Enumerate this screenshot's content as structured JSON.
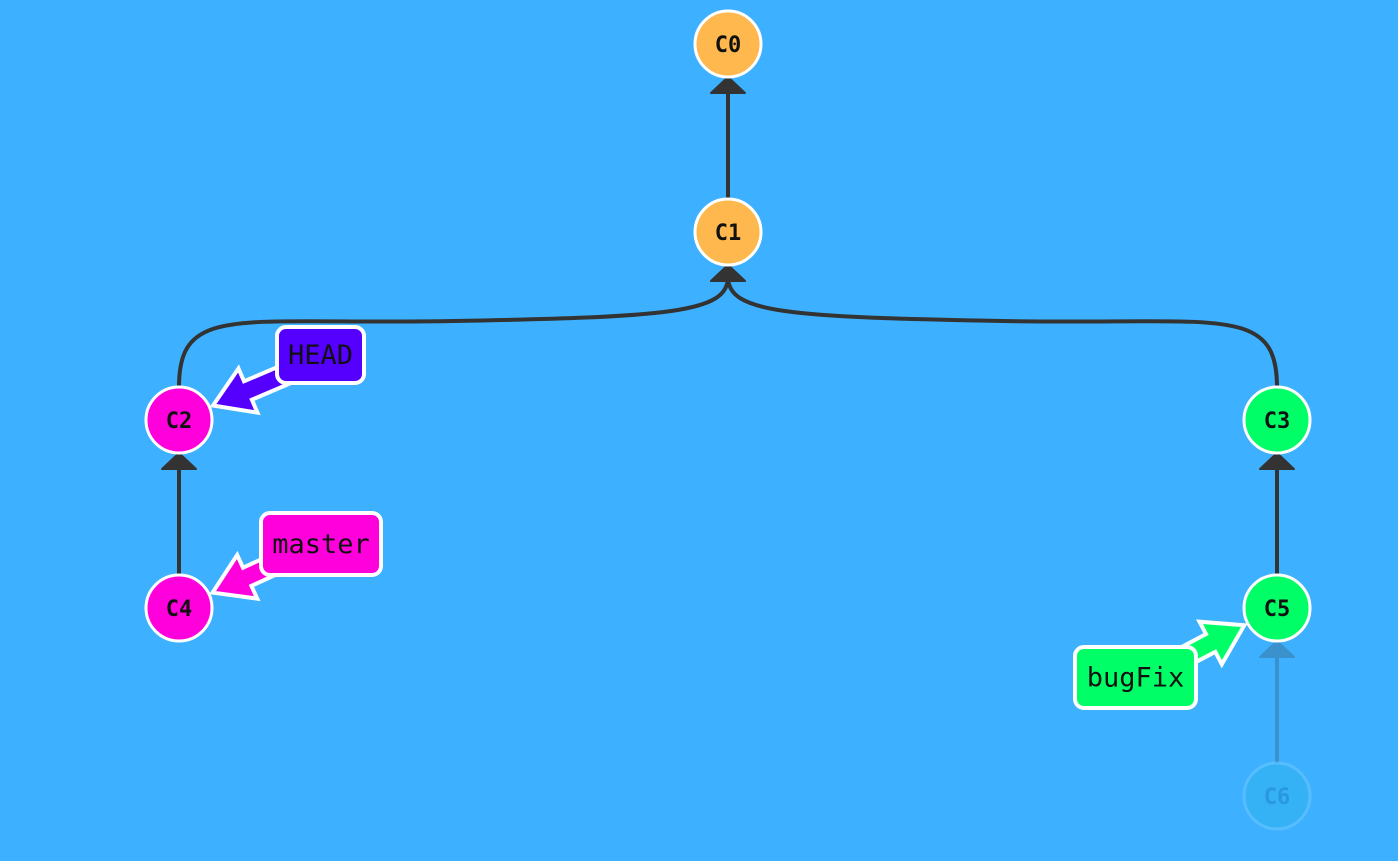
{
  "colors": {
    "background": "#3db1ff",
    "edge": "#333333",
    "outline": "#ffffff",
    "text": "#111111"
  },
  "commits": [
    {
      "id": "C0",
      "label": "C0",
      "color": "#ffb84d"
    },
    {
      "id": "C1",
      "label": "C1",
      "color": "#ffb84d"
    },
    {
      "id": "C2",
      "label": "C2",
      "color": "#ff00dd"
    },
    {
      "id": "C3",
      "label": "C3",
      "color": "#00ff66"
    },
    {
      "id": "C4",
      "label": "C4",
      "color": "#ff00dd"
    },
    {
      "id": "C5",
      "label": "C5",
      "color": "#00ff66"
    },
    {
      "id": "C6",
      "label": "C6",
      "color": "#2fb4ef",
      "ghost": true
    }
  ],
  "edges": [
    {
      "from": "C1",
      "to": "C0"
    },
    {
      "from": "C2",
      "to": "C1"
    },
    {
      "from": "C3",
      "to": "C1"
    },
    {
      "from": "C4",
      "to": "C2"
    },
    {
      "from": "C5",
      "to": "C3"
    },
    {
      "from": "C6",
      "to": "C5",
      "ghost": true
    }
  ],
  "branches": [
    {
      "name": "HEAD",
      "target": "C2",
      "color": "#5500ff"
    },
    {
      "name": "master",
      "target": "C4",
      "color": "#ff00dd"
    },
    {
      "name": "bugFix",
      "target": "C5",
      "color": "#00ff66"
    }
  ]
}
